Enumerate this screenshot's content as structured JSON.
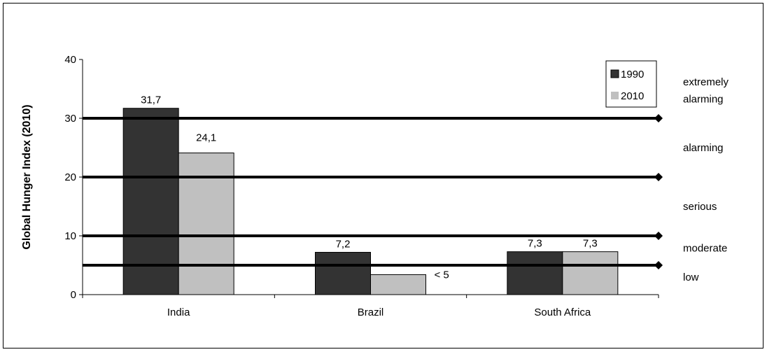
{
  "chart_data": {
    "type": "bar",
    "title": "",
    "xlabel": "",
    "ylabel": "Global Hunger Index (2010)",
    "ylim": [
      0,
      40
    ],
    "yticks": [
      "0",
      "10",
      "20",
      "30",
      "40"
    ],
    "categories": [
      "India",
      "Brazil",
      "South Africa"
    ],
    "series": [
      {
        "name": "1990",
        "values": [
          31.7,
          7.2,
          7.3
        ],
        "labels": [
          "31,7",
          "7,2",
          "7,3"
        ],
        "color": "#333333"
      },
      {
        "name": "2010",
        "values": [
          24.1,
          3.4,
          7.3
        ],
        "labels": [
          "24,1",
          "< 5",
          "7,3"
        ],
        "color": "#c0c0c0"
      }
    ],
    "thresholds": [
      30,
      20,
      10,
      5
    ],
    "severity_bands": [
      "extremely\nalarming",
      "alarming",
      "serious",
      "moderate",
      "low"
    ],
    "legend_position": "top-right",
    "grid": false
  }
}
